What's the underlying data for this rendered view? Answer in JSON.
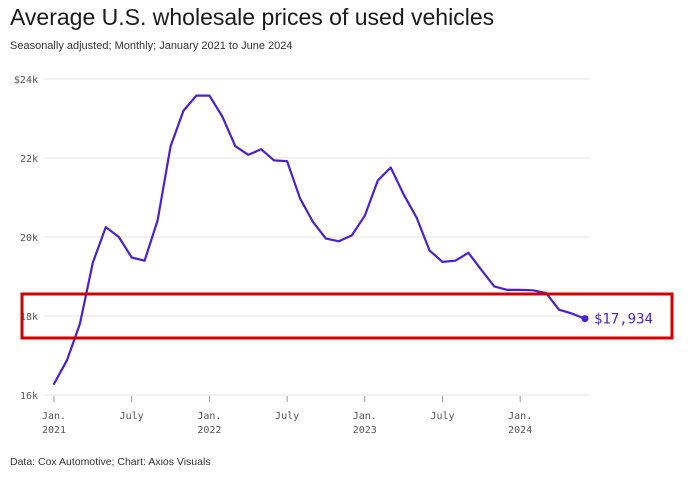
{
  "title": "Average U.S. wholesale prices of used vehicles",
  "subtitle": "Seasonally adjusted; Monthly; January 2021 to June 2024",
  "source": "Data: Cox Automotive; Chart: Axios Visuals",
  "colors": {
    "line": "#4a1fd6",
    "highlight": "#d40000",
    "grid": "#e6e6e6"
  },
  "chart_data": {
    "type": "line",
    "title": "Average U.S. wholesale prices of used vehicles",
    "ylim": [
      16000,
      24000
    ],
    "yticks": [
      {
        "value": 16000,
        "label": "16k"
      },
      {
        "value": 18000,
        "label": "18k"
      },
      {
        "value": 20000,
        "label": "20k"
      },
      {
        "value": 22000,
        "label": "22k"
      },
      {
        "value": 24000,
        "label": "$24k"
      }
    ],
    "xticks": [
      {
        "month": "2021-01",
        "lines": [
          "Jan.",
          "2021"
        ]
      },
      {
        "month": "2021-07",
        "lines": [
          "July"
        ]
      },
      {
        "month": "2022-01",
        "lines": [
          "Jan.",
          "2022"
        ]
      },
      {
        "month": "2022-07",
        "lines": [
          "July"
        ]
      },
      {
        "month": "2023-01",
        "lines": [
          "Jan.",
          "2023"
        ]
      },
      {
        "month": "2023-07",
        "lines": [
          "July"
        ]
      },
      {
        "month": "2024-01",
        "lines": [
          "Jan.",
          "2024"
        ]
      }
    ],
    "grid": true,
    "x": [
      "2021-01",
      "2021-02",
      "2021-03",
      "2021-04",
      "2021-05",
      "2021-06",
      "2021-07",
      "2021-08",
      "2021-09",
      "2021-10",
      "2021-11",
      "2021-12",
      "2022-01",
      "2022-02",
      "2022-03",
      "2022-04",
      "2022-05",
      "2022-06",
      "2022-07",
      "2022-08",
      "2022-09",
      "2022-10",
      "2022-11",
      "2022-12",
      "2023-01",
      "2023-02",
      "2023-03",
      "2023-04",
      "2023-05",
      "2023-06",
      "2023-07",
      "2023-08",
      "2023-09",
      "2023-10",
      "2023-11",
      "2023-12",
      "2024-01",
      "2024-02",
      "2024-03",
      "2024-04",
      "2024-05",
      "2024-06"
    ],
    "series": [
      {
        "values": [
          16280,
          16880,
          17800,
          19350,
          20250,
          20000,
          19480,
          19400,
          20420,
          22300,
          23200,
          23580,
          23580,
          23050,
          22300,
          22080,
          22220,
          21940,
          21920,
          20980,
          20380,
          19960,
          19890,
          20040,
          20540,
          21430,
          21760,
          21080,
          20490,
          19660,
          19370,
          19400,
          19600,
          19170,
          18750,
          18660,
          18660,
          18650,
          18580,
          18160,
          18060,
          17934
        ]
      }
    ],
    "end_label": "$17,934"
  }
}
